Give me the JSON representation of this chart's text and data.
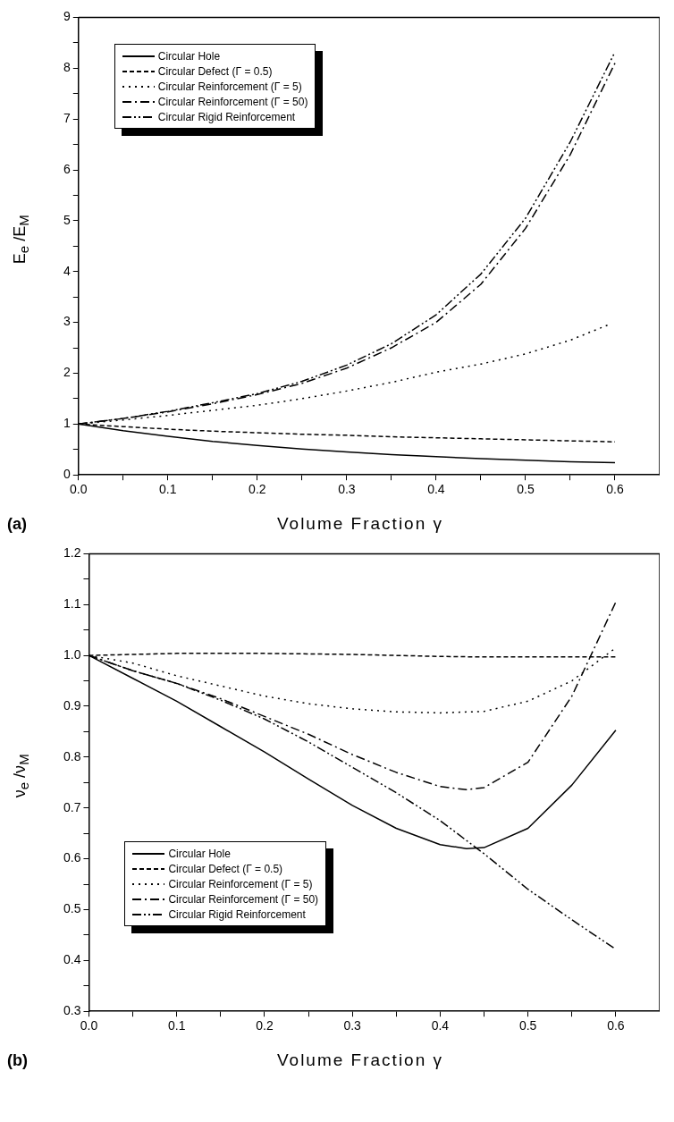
{
  "chart_data": [
    {
      "type": "line",
      "xlabel": "Volume Fraction γ",
      "ylabel": "E$_{e}$ /E$_{M}$",
      "annotations": [
        "(a)"
      ],
      "x": [
        0,
        0.05,
        0.1,
        0.15,
        0.2,
        0.25,
        0.3,
        0.35,
        0.4,
        0.45,
        0.5,
        0.55,
        0.6
      ],
      "series": [
        {
          "name": "Circular Hole",
          "color": "#000000",
          "line_style": "solid",
          "values": [
            1,
            0.87,
            0.76,
            0.66,
            0.58,
            0.51,
            0.45,
            0.4,
            0.36,
            0.32,
            0.29,
            0.26,
            0.24
          ]
        },
        {
          "name": "Circular Defect (Γ = 0.5)",
          "color": "#000000",
          "line_style": "dashed",
          "values": [
            1,
            0.95,
            0.9,
            0.86,
            0.83,
            0.8,
            0.78,
            0.75,
            0.73,
            0.71,
            0.69,
            0.67,
            0.65
          ]
        },
        {
          "name": "Circular Reinforcement (Γ = 5)",
          "color": "#000000",
          "line_style": "dotted",
          "x": [
            0,
            0.05,
            0.1,
            0.15,
            0.2,
            0.25,
            0.3,
            0.35,
            0.4,
            0.45,
            0.5,
            0.55,
            0.595
          ],
          "values": [
            1,
            1.08,
            1.17,
            1.27,
            1.37,
            1.5,
            1.65,
            1.82,
            2.02,
            2.18,
            2.38,
            2.65,
            2.97
          ]
        },
        {
          "name": "Circular Reinforcement (Γ = 50)",
          "color": "#000000",
          "line_style": "dashdot",
          "values": [
            1,
            1.11,
            1.24,
            1.4,
            1.58,
            1.8,
            2.1,
            2.5,
            3.0,
            3.75,
            4.85,
            6.3,
            8.1
          ]
        },
        {
          "name": "Circular Rigid Reinforcement",
          "color": "#000000",
          "line_style": "dashdotdot",
          "values": [
            1,
            1.11,
            1.25,
            1.42,
            1.6,
            1.84,
            2.16,
            2.58,
            3.15,
            3.95,
            5.05,
            6.55,
            8.32
          ]
        }
      ],
      "xlim": [
        0,
        0.65
      ],
      "xticks": [
        {
          "value": 0,
          "label": "0.0"
        },
        {
          "value": 0.05,
          "label": null
        },
        0.1,
        {
          "value": 0.15,
          "label": null
        },
        0.2,
        {
          "value": 0.25,
          "label": null
        },
        0.3,
        {
          "value": 0.35,
          "label": null
        },
        0.4,
        {
          "value": 0.45,
          "label": null
        },
        0.5,
        {
          "value": 0.55,
          "label": null
        },
        0.6
      ],
      "ylim": [
        0,
        9
      ],
      "yticks": [
        0,
        {
          "value": 0.5,
          "label": null
        },
        1,
        {
          "value": 1.5,
          "label": null
        },
        2,
        {
          "value": 2.5,
          "label": null
        },
        3,
        {
          "value": 3.5,
          "label": null
        },
        4,
        {
          "value": 4.5,
          "label": null
        },
        5,
        {
          "value": 5.5,
          "label": null
        },
        6,
        {
          "value": 6.5,
          "label": null
        },
        7,
        {
          "value": 7.5,
          "label": null
        },
        8,
        {
          "value": 8.5,
          "label": null
        },
        9
      ],
      "grid": false,
      "legend": "top left",
      "marker": "none"
    },
    {
      "type": "line",
      "xlabel": "Volume Fraction γ",
      "ylabel": "ν$_{e}$ /ν$_{M}$",
      "annotations": [
        "(b)"
      ],
      "x": [
        0,
        0.05,
        0.1,
        0.15,
        0.2,
        0.25,
        0.3,
        0.35,
        0.4,
        0.45,
        0.5,
        0.55,
        0.6
      ],
      "series": [
        {
          "name": "Circular Hole",
          "color": "#000000",
          "line_style": "solid",
          "x": [
            0,
            0.05,
            0.1,
            0.15,
            0.2,
            0.25,
            0.3,
            0.35,
            0.4,
            0.43,
            0.45,
            0.5,
            0.55,
            0.6
          ],
          "values": [
            1.0,
            0.955,
            0.91,
            0.86,
            0.81,
            0.757,
            0.705,
            0.66,
            0.628,
            0.62,
            0.622,
            0.66,
            0.745,
            0.853
          ]
        },
        {
          "name": "Circular Defect (Γ = 0.5)",
          "color": "#000000",
          "line_style": "dashed",
          "values": [
            1.0,
            1.002,
            1.004,
            1.004,
            1.004,
            1.003,
            1.002,
            1.0,
            0.998,
            0.997,
            0.997,
            0.997,
            0.997
          ]
        },
        {
          "name": "Circular Reinforcement (Γ = 5)",
          "color": "#000000",
          "line_style": "dotted",
          "values": [
            1.0,
            0.985,
            0.96,
            0.94,
            0.92,
            0.905,
            0.895,
            0.889,
            0.887,
            0.89,
            0.91,
            0.95,
            1.015
          ]
        },
        {
          "name": "Circular Reinforcement (Γ = 50)",
          "color": "#000000",
          "line_style": "dashdot",
          "x": [
            0,
            0.05,
            0.1,
            0.15,
            0.2,
            0.25,
            0.3,
            0.35,
            0.4,
            0.43,
            0.45,
            0.5,
            0.55,
            0.6
          ],
          "values": [
            1.0,
            0.97,
            0.945,
            0.915,
            0.88,
            0.845,
            0.805,
            0.77,
            0.742,
            0.736,
            0.74,
            0.79,
            0.92,
            1.105
          ]
        },
        {
          "name": "Circular Rigid Reinforcement",
          "color": "#000000",
          "line_style": "dashdotdot",
          "values": [
            1.0,
            0.97,
            0.945,
            0.912,
            0.875,
            0.83,
            0.78,
            0.73,
            0.675,
            0.61,
            0.54,
            0.48,
            0.422
          ]
        }
      ],
      "xlim": [
        0,
        0.65
      ],
      "xticks": [
        {
          "value": 0,
          "label": "0.0"
        },
        {
          "value": 0.05,
          "label": null
        },
        0.1,
        {
          "value": 0.15,
          "label": null
        },
        0.2,
        {
          "value": 0.25,
          "label": null
        },
        0.3,
        {
          "value": 0.35,
          "label": null
        },
        0.4,
        {
          "value": 0.45,
          "label": null
        },
        0.5,
        {
          "value": 0.55,
          "label": null
        },
        0.6
      ],
      "ylim": [
        0.3,
        1.2
      ],
      "yticks": [
        0.3,
        {
          "value": 0.35,
          "label": null
        },
        0.4,
        {
          "value": 0.45,
          "label": null
        },
        0.5,
        {
          "value": 0.55,
          "label": null
        },
        0.6,
        {
          "value": 0.65,
          "label": null
        },
        0.7,
        {
          "value": 0.75,
          "label": null
        },
        0.8,
        {
          "value": 0.85,
          "label": null
        },
        0.9,
        {
          "value": 0.95,
          "label": null
        },
        {
          "value": 1.0,
          "label": "1.0"
        },
        {
          "value": 1.05,
          "label": null
        },
        1.1,
        {
          "value": 1.15,
          "label": null
        },
        1.2
      ],
      "grid": false,
      "legend": "bottom left",
      "marker": "none"
    }
  ]
}
